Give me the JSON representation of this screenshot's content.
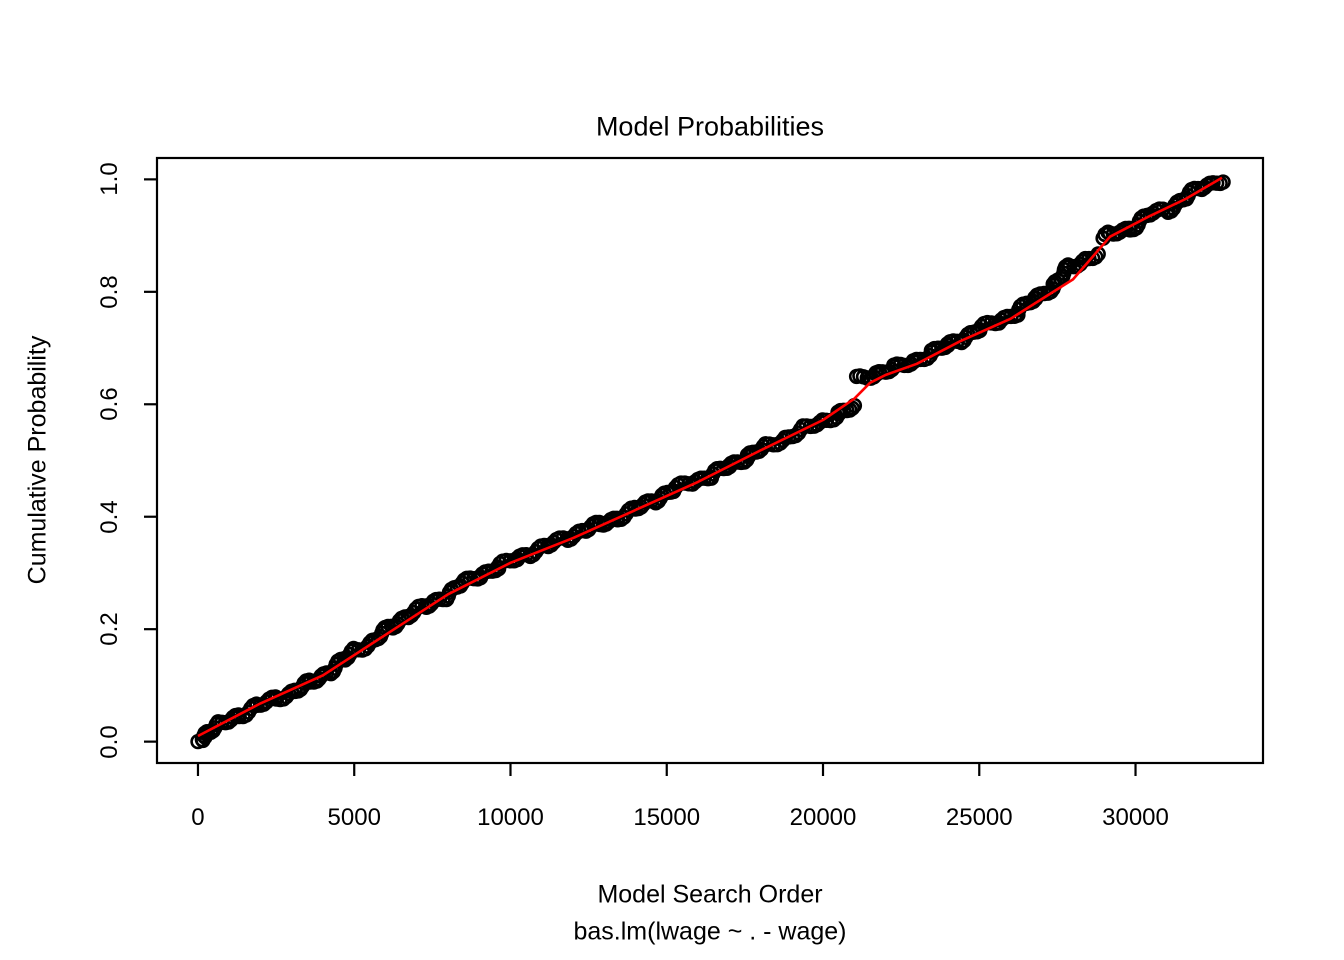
{
  "figure": {
    "title": "Model Probabilities",
    "background_color": "#FFFFFF",
    "axis_color": "#000000",
    "text_color": "#000000"
  },
  "chart_data": {
    "type": "scatter",
    "title": "Model Probabilities",
    "xlabel": "Model Search Order",
    "xlabel_sub": "bas.lm(lwage ~ . - wage)",
    "ylabel": "Cumulative Probability",
    "xlim": [
      -1311,
      34079
    ],
    "ylim": [
      -0.038,
      1.038
    ],
    "grid": false,
    "legend": null,
    "x_ticks": {
      "values": [
        0,
        5000,
        10000,
        15000,
        20000,
        25000,
        30000
      ],
      "labels": [
        "0",
        "5000",
        "10000",
        "15000",
        "20000",
        "25000",
        "30000"
      ]
    },
    "y_ticks": {
      "values": [
        0.0,
        0.2,
        0.4,
        0.6,
        0.8,
        1.0
      ],
      "labels": [
        "0.0",
        "0.2",
        "0.4",
        "0.6",
        "0.8",
        "1.0"
      ]
    },
    "jump": {
      "x": 21000,
      "y_before": 0.595,
      "y_after": 0.645
    },
    "series": [
      {
        "name": "cumulative_probability_points",
        "type": "scatter",
        "marker": "open-circle",
        "color": "#000000",
        "segments": [
          [
            [
              1,
              0.0
            ],
            [
              90,
              0.006
            ],
            [
              180,
              0.011
            ],
            [
              300,
              0.017
            ],
            [
              700,
              0.03
            ],
            [
              1300,
              0.047
            ],
            [
              1900,
              0.063
            ],
            [
              2500,
              0.077
            ],
            [
              3100,
              0.09
            ],
            [
              3600,
              0.105
            ],
            [
              4200,
              0.125
            ],
            [
              4700,
              0.146
            ],
            [
              5024,
              0.163
            ],
            [
              5600,
              0.178
            ],
            [
              6200,
              0.205
            ],
            [
              6700,
              0.225
            ],
            [
              7300,
              0.24
            ],
            [
              7900,
              0.258
            ],
            [
              8384,
              0.278
            ],
            [
              9000,
              0.296
            ],
            [
              9600,
              0.31
            ],
            [
              10200,
              0.326
            ],
            [
              10600,
              0.335
            ],
            [
              11200,
              0.348
            ],
            [
              11800,
              0.363
            ],
            [
              12400,
              0.377
            ],
            [
              12864,
              0.386
            ],
            [
              13400,
              0.398
            ],
            [
              14000,
              0.413
            ],
            [
              14600,
              0.43
            ],
            [
              15200,
              0.447
            ],
            [
              15800,
              0.462
            ],
            [
              16400,
              0.473
            ],
            [
              17000,
              0.49
            ],
            [
              17600,
              0.508
            ],
            [
              18200,
              0.525
            ],
            [
              18800,
              0.54
            ],
            [
              19400,
              0.556
            ],
            [
              20000,
              0.57
            ],
            [
              20500,
              0.583
            ],
            [
              21024,
              0.595
            ]
          ],
          [
            [
              21100,
              0.645
            ],
            [
              21700,
              0.655
            ],
            [
              22300,
              0.664
            ],
            [
              22900,
              0.676
            ],
            [
              23500,
              0.692
            ],
            [
              24000,
              0.705
            ],
            [
              24384,
              0.715
            ],
            [
              25000,
              0.733
            ],
            [
              25600,
              0.748
            ],
            [
              26200,
              0.763
            ],
            [
              26800,
              0.788
            ],
            [
              27400,
              0.812
            ],
            [
              27904,
              0.845
            ],
            [
              28400,
              0.858
            ],
            [
              28800,
              0.868
            ]
          ],
          [
            [
              29000,
              0.893
            ],
            [
              29184,
              0.902
            ],
            [
              29800,
              0.912
            ],
            [
              30464,
              0.938
            ],
            [
              31000,
              0.945
            ],
            [
              31600,
              0.968
            ],
            [
              32100,
              0.985
            ],
            [
              32768,
              1.0
            ]
          ]
        ]
      },
      {
        "name": "fitted_line",
        "type": "line",
        "color": "#FF0000",
        "points": [
          [
            1,
            0.01
          ],
          [
            2000,
            0.068
          ],
          [
            4000,
            0.118
          ],
          [
            6000,
            0.19
          ],
          [
            8000,
            0.262
          ],
          [
            10000,
            0.318
          ],
          [
            12000,
            0.362
          ],
          [
            14000,
            0.412
          ],
          [
            16000,
            0.462
          ],
          [
            18000,
            0.518
          ],
          [
            20000,
            0.572
          ],
          [
            21000,
            0.61
          ],
          [
            21500,
            0.638
          ],
          [
            22000,
            0.652
          ],
          [
            23000,
            0.672
          ],
          [
            24384,
            0.712
          ],
          [
            26000,
            0.752
          ],
          [
            28000,
            0.822
          ],
          [
            29184,
            0.898
          ],
          [
            30464,
            0.935
          ],
          [
            31600,
            0.965
          ],
          [
            32768,
            1.003
          ]
        ]
      }
    ]
  }
}
